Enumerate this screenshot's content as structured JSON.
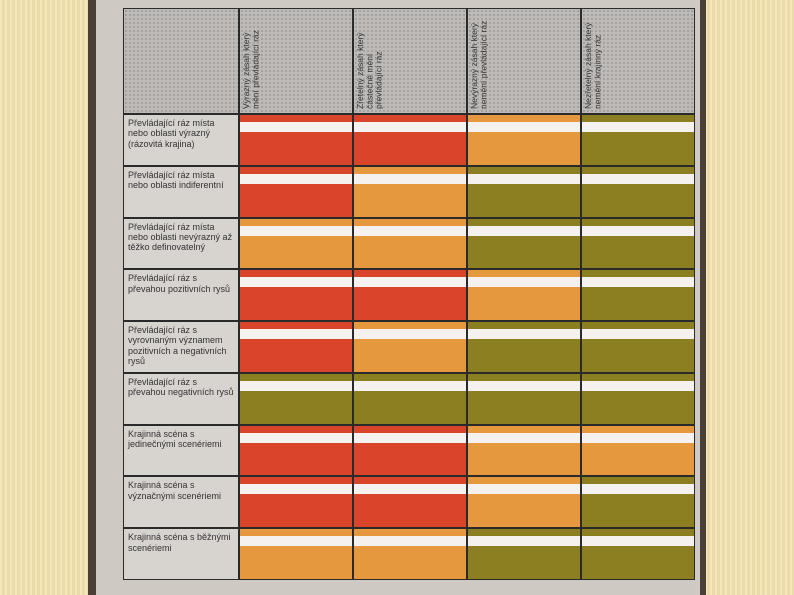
{
  "table": {
    "columns": [
      "Výrazný zásah který mění převládající ráz",
      "Zřetelný zásah který částečně mění převládající ráz",
      "Nevýrazný zásah který nemění převládající ráz",
      "Nezřetelný zásah který nemění krajinný ráz"
    ],
    "rows": [
      {
        "label": "Převládající ráz místa nebo oblasti výrazný (rázovitá krajina)",
        "colors": [
          "#d8452b",
          "#d8452b",
          "#e6983e",
          "#8b7f22"
        ]
      },
      {
        "label": "Převládající ráz místa nebo oblasti indiferentní",
        "colors": [
          "#d8452b",
          "#e6983e",
          "#8b7f22",
          "#8b7f22"
        ]
      },
      {
        "label": "Převládající ráz místa nebo oblasti nevýrazný až těžko definovatelný",
        "colors": [
          "#e6983e",
          "#e6983e",
          "#8b7f22",
          "#8b7f22"
        ]
      },
      {
        "label": "Převládající ráz s převahou pozitivních rysů",
        "colors": [
          "#d8452b",
          "#d8452b",
          "#e6983e",
          "#8b7f22"
        ]
      },
      {
        "label": "Převládající ráz s vyrovnaným významem pozitivních a negativních rysů",
        "colors": [
          "#d8452b",
          "#e6983e",
          "#8b7f22",
          "#8b7f22"
        ]
      },
      {
        "label": "Převládající ráz s převahou negativních rysů",
        "colors": [
          "#8b7f22",
          "#8b7f22",
          "#8b7f22",
          "#8b7f22"
        ]
      },
      {
        "label": "Krajinná scéna s jedinečnými scenériemi",
        "colors": [
          "#d8452b",
          "#d8452b",
          "#e6983e",
          "#e6983e"
        ]
      },
      {
        "label": "Krajinná scéna s význačnými scenériemi",
        "colors": [
          "#d8452b",
          "#d8452b",
          "#e6983e",
          "#8b7f22"
        ]
      },
      {
        "label": "Krajinná scéna s běžnými scenériemi",
        "colors": [
          "#e6983e",
          "#e6983e",
          "#8b7f22",
          "#8b7f22"
        ]
      }
    ]
  }
}
